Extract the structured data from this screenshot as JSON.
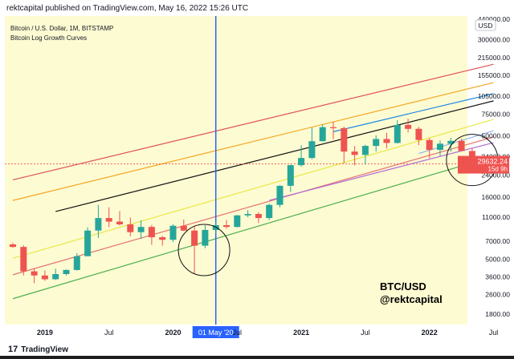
{
  "header": {
    "published": "rektcapital published on TradingView.com, May 16, 2022 15:26 UTC"
  },
  "legend": {
    "symbol": "Bitcoin / U.S. Dollar, 1M, BITSTAMP",
    "indicator": "Bitcoin Log Growth Curves"
  },
  "branding": {
    "logo": "17",
    "name": "TradingView"
  },
  "watermark": {
    "pair": "BTC/USD",
    "handle": "@rektcapital"
  },
  "colors": {
    "background": "#fdfbd2",
    "up": "#26a69a",
    "down": "#ef5350",
    "crosshair": "#2962ff"
  },
  "chart_data": {
    "type": "candlestick",
    "y_scale": "log",
    "currency_label": "USD",
    "y_ticks": [
      440000,
      300000,
      215000,
      155000,
      105000,
      75000,
      50000,
      34000,
      24000,
      16000,
      11000,
      7000,
      5000,
      3600,
      2600,
      1800
    ],
    "x_ticks": [
      "2019",
      "Jul",
      "2020",
      "Jul",
      "2021",
      "Jul",
      "2022",
      "Jul"
    ],
    "last_price": {
      "value": "29632.24",
      "countdown": "15d 9h"
    },
    "crosshair_label": "01 May '20",
    "highlights": [
      "Mar 2020",
      "May 2022"
    ],
    "candles": [
      {
        "t": "2018-10",
        "o": 6610,
        "h": 6800,
        "l": 6200,
        "c": 6300
      },
      {
        "t": "2018-11",
        "o": 6300,
        "h": 6500,
        "l": 3700,
        "c": 4000
      },
      {
        "t": "2018-12",
        "o": 4000,
        "h": 4200,
        "l": 3200,
        "c": 3700
      },
      {
        "t": "2019-01",
        "o": 3700,
        "h": 4050,
        "l": 3350,
        "c": 3450
      },
      {
        "t": "2019-02",
        "o": 3450,
        "h": 4200,
        "l": 3400,
        "c": 3800
      },
      {
        "t": "2019-03",
        "o": 3800,
        "h": 4150,
        "l": 3700,
        "c": 4100
      },
      {
        "t": "2019-04",
        "o": 4100,
        "h": 5600,
        "l": 4050,
        "c": 5300
      },
      {
        "t": "2019-05",
        "o": 5300,
        "h": 9100,
        "l": 5300,
        "c": 8550
      },
      {
        "t": "2019-06",
        "o": 8550,
        "h": 13800,
        "l": 7450,
        "c": 10800
      },
      {
        "t": "2019-07",
        "o": 10800,
        "h": 13200,
        "l": 9100,
        "c": 10100
      },
      {
        "t": "2019-08",
        "o": 10100,
        "h": 12300,
        "l": 9400,
        "c": 9600
      },
      {
        "t": "2019-09",
        "o": 9600,
        "h": 10900,
        "l": 7700,
        "c": 8300
      },
      {
        "t": "2019-10",
        "o": 8300,
        "h": 10350,
        "l": 7300,
        "c": 9150
      },
      {
        "t": "2019-11",
        "o": 9150,
        "h": 9500,
        "l": 6550,
        "c": 7550
      },
      {
        "t": "2019-12",
        "o": 7550,
        "h": 7750,
        "l": 6450,
        "c": 7200
      },
      {
        "t": "2020-01",
        "o": 7200,
        "h": 9600,
        "l": 6900,
        "c": 9350
      },
      {
        "t": "2020-02",
        "o": 9350,
        "h": 10500,
        "l": 8450,
        "c": 8550
      },
      {
        "t": "2020-03",
        "o": 8550,
        "h": 9200,
        "l": 3850,
        "c": 6450
      },
      {
        "t": "2020-04",
        "o": 6450,
        "h": 9450,
        "l": 6150,
        "c": 8650
      },
      {
        "t": "2020-05",
        "o": 8650,
        "h": 10100,
        "l": 8100,
        "c": 9450
      },
      {
        "t": "2020-06",
        "o": 9450,
        "h": 10400,
        "l": 8850,
        "c": 9150
      },
      {
        "t": "2020-07",
        "o": 9150,
        "h": 11450,
        "l": 9050,
        "c": 11350
      },
      {
        "t": "2020-08",
        "o": 11350,
        "h": 12500,
        "l": 10950,
        "c": 11650
      },
      {
        "t": "2020-09",
        "o": 11650,
        "h": 12050,
        "l": 9850,
        "c": 10800
      },
      {
        "t": "2020-10",
        "o": 10800,
        "h": 14100,
        "l": 10400,
        "c": 13800
      },
      {
        "t": "2020-11",
        "o": 13800,
        "h": 19900,
        "l": 13200,
        "c": 19700
      },
      {
        "t": "2020-12",
        "o": 19700,
        "h": 29300,
        "l": 17600,
        "c": 28950
      },
      {
        "t": "2021-01",
        "o": 28950,
        "h": 41950,
        "l": 28100,
        "c": 33100
      },
      {
        "t": "2021-02",
        "o": 33100,
        "h": 58350,
        "l": 32300,
        "c": 45250
      },
      {
        "t": "2021-03",
        "o": 45250,
        "h": 61800,
        "l": 45000,
        "c": 58800
      },
      {
        "t": "2021-04",
        "o": 58800,
        "h": 64900,
        "l": 47000,
        "c": 57750
      },
      {
        "t": "2021-05",
        "o": 57750,
        "h": 59500,
        "l": 30000,
        "c": 37300
      },
      {
        "t": "2021-06",
        "o": 37300,
        "h": 41300,
        "l": 28800,
        "c": 35050
      },
      {
        "t": "2021-07",
        "o": 35050,
        "h": 42300,
        "l": 29300,
        "c": 41450
      },
      {
        "t": "2021-08",
        "o": 41450,
        "h": 50500,
        "l": 37300,
        "c": 47150
      },
      {
        "t": "2021-09",
        "o": 47150,
        "h": 52900,
        "l": 39600,
        "c": 43800
      },
      {
        "t": "2021-10",
        "o": 43800,
        "h": 67000,
        "l": 43300,
        "c": 61300
      },
      {
        "t": "2021-11",
        "o": 61300,
        "h": 69000,
        "l": 53250,
        "c": 57000
      },
      {
        "t": "2021-12",
        "o": 57000,
        "h": 59100,
        "l": 42000,
        "c": 46300
      },
      {
        "t": "2022-01",
        "o": 46300,
        "h": 47950,
        "l": 32900,
        "c": 38500
      },
      {
        "t": "2022-02",
        "o": 38500,
        "h": 45800,
        "l": 34300,
        "c": 43200
      },
      {
        "t": "2022-03",
        "o": 43200,
        "h": 48200,
        "l": 37200,
        "c": 45550
      },
      {
        "t": "2022-04",
        "o": 45550,
        "h": 47450,
        "l": 37600,
        "c": 37700
      },
      {
        "t": "2022-05",
        "o": 37700,
        "h": 40000,
        "l": 25400,
        "c": 29632
      }
    ],
    "curves": [
      {
        "color": "#e05252",
        "values": {
          "2018-10": 22000,
          "2022-07": 190000
        }
      },
      {
        "color": "#f5a623",
        "values": {
          "2018-10": 15000,
          "2022-07": 135000
        }
      },
      {
        "color": "#f2d230",
        "values": {
          "2022-07": 115000
        }
      },
      {
        "color": "#1e88e5",
        "values": {
          "2021-04": 54000,
          "2022-07": 110000
        }
      },
      {
        "color": "#111111",
        "values": {
          "2019-02": 12200,
          "2022-07": 96000
        }
      },
      {
        "color": "#e8e845",
        "values": {
          "2018-10": 5100,
          "2022-07": 68000
        }
      },
      {
        "color": "#8fb4f0",
        "values": {
          "2021-12": 36000,
          "2022-07": 55000
        }
      },
      {
        "color": "#e57373",
        "values": {
          "2018-10": 3750,
          "2022-07": 49000
        }
      },
      {
        "color": "#b06bd8",
        "values": {
          "2020-10": 15000,
          "2022-07": 44000
        }
      },
      {
        "color": "#a6d84a",
        "values": {
          "2022-07": 39000
        }
      },
      {
        "color": "#4caf50",
        "values": {
          "2018-10": 2400,
          "2022-07": 34000
        }
      }
    ]
  }
}
